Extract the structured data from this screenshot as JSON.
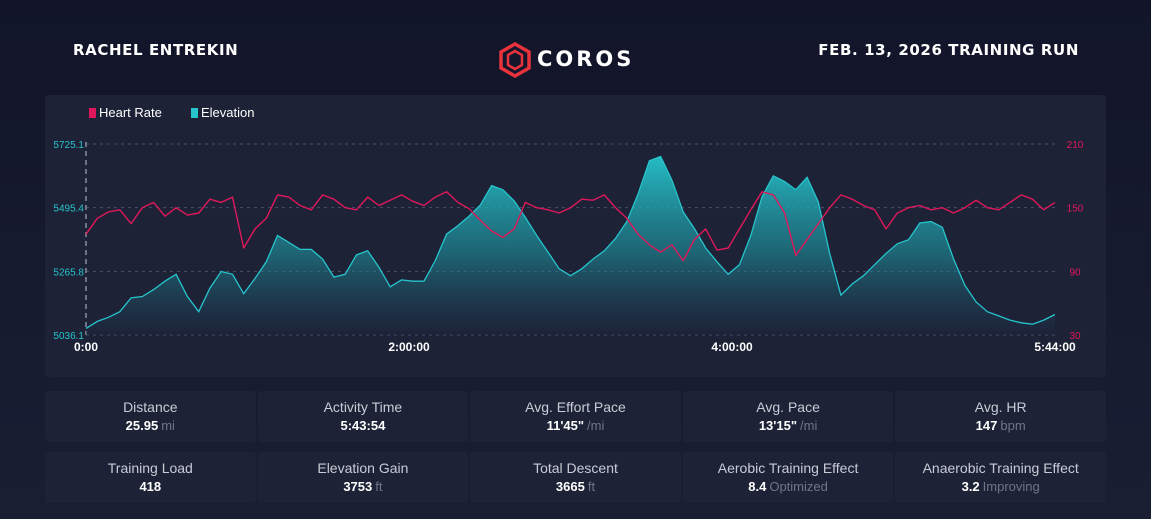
{
  "header": {
    "athlete_name": "RACHEL ENTREKIN",
    "brand": "COROS",
    "run_title": "FEB. 13, 2026 TRAINING RUN"
  },
  "colors": {
    "heart_rate": "#e0185b",
    "elevation": "#26c4cc",
    "background": "#161a2e",
    "panel": "#1d2236"
  },
  "chart_data": {
    "type": "line",
    "legend": [
      "Heart Rate",
      "Elevation"
    ],
    "legend_position": "top-left",
    "grid": true,
    "x_ticks": [
      "0:00",
      "2:00:00",
      "4:00:00",
      "5:44:00"
    ],
    "x_range_minutes": [
      0,
      344
    ],
    "y_left": {
      "label": "Elevation",
      "ticks": [
        "5725.1",
        "5495.4",
        "5265.8",
        "5036.1"
      ],
      "range": [
        5036.1,
        5725.1
      ]
    },
    "y_right": {
      "label": "Heart Rate",
      "ticks": [
        "210",
        "150",
        "90",
        "30"
      ],
      "range": [
        30,
        210
      ]
    },
    "series": [
      {
        "name": "Elevation",
        "type": "area",
        "x": [
          0,
          4,
          8,
          12,
          16,
          20,
          24,
          28,
          32,
          36,
          40,
          44,
          48,
          52,
          56,
          60,
          64,
          68,
          72,
          76,
          80,
          84,
          88,
          92,
          96,
          100,
          104,
          108,
          112,
          116,
          120,
          124,
          128,
          132,
          136,
          140,
          144,
          148,
          152,
          156,
          160,
          164,
          168,
          172,
          176,
          180,
          184,
          188,
          192,
          196,
          200,
          204,
          208,
          212,
          216,
          220,
          224,
          228,
          232,
          236,
          240,
          244,
          248,
          252,
          256,
          260,
          264,
          268,
          272,
          276,
          280,
          284,
          288,
          292,
          296,
          300,
          304,
          308,
          312,
          316,
          320,
          324,
          328,
          332,
          336,
          340,
          344
        ],
        "values": [
          5060,
          5085,
          5100,
          5120,
          5170,
          5175,
          5200,
          5230,
          5255,
          5175,
          5120,
          5205,
          5265,
          5255,
          5185,
          5240,
          5300,
          5395,
          5370,
          5345,
          5345,
          5310,
          5245,
          5255,
          5325,
          5340,
          5280,
          5210,
          5235,
          5230,
          5230,
          5305,
          5400,
          5430,
          5465,
          5505,
          5575,
          5560,
          5520,
          5460,
          5395,
          5335,
          5275,
          5250,
          5275,
          5310,
          5340,
          5385,
          5445,
          5545,
          5665,
          5680,
          5595,
          5480,
          5420,
          5350,
          5300,
          5255,
          5290,
          5395,
          5535,
          5610,
          5590,
          5560,
          5605,
          5515,
          5330,
          5180,
          5220,
          5250,
          5290,
          5330,
          5365,
          5380,
          5440,
          5445,
          5425,
          5310,
          5215,
          5155,
          5120,
          5105,
          5090,
          5080,
          5075,
          5090,
          5110
        ]
      },
      {
        "name": "Heart Rate",
        "type": "line",
        "x": [
          0,
          4,
          8,
          12,
          16,
          20,
          24,
          28,
          32,
          36,
          40,
          44,
          48,
          52,
          56,
          60,
          64,
          68,
          72,
          76,
          80,
          84,
          88,
          92,
          96,
          100,
          104,
          108,
          112,
          116,
          120,
          124,
          128,
          132,
          136,
          140,
          144,
          148,
          152,
          156,
          160,
          164,
          168,
          172,
          176,
          180,
          184,
          188,
          192,
          196,
          200,
          204,
          208,
          212,
          216,
          220,
          224,
          228,
          232,
          236,
          240,
          244,
          248,
          252,
          256,
          260,
          264,
          268,
          272,
          276,
          280,
          284,
          288,
          292,
          296,
          300,
          304,
          308,
          312,
          316,
          320,
          324,
          328,
          332,
          336,
          340,
          344
        ],
        "values": [
          125,
          140,
          146,
          148,
          135,
          150,
          155,
          142,
          150,
          143,
          145,
          158,
          155,
          160,
          112,
          130,
          140,
          162,
          160,
          152,
          148,
          162,
          158,
          150,
          148,
          160,
          152,
          157,
          162,
          156,
          152,
          160,
          165,
          155,
          149,
          138,
          128,
          122,
          130,
          155,
          150,
          148,
          145,
          150,
          158,
          157,
          162,
          150,
          140,
          125,
          115,
          108,
          115,
          100,
          120,
          130,
          110,
          112,
          130,
          148,
          165,
          162,
          145,
          105,
          120,
          135,
          150,
          162,
          158,
          152,
          148,
          130,
          145,
          150,
          152,
          148,
          150,
          145,
          150,
          157,
          150,
          148,
          155,
          162,
          158,
          148,
          155
        ]
      }
    ]
  },
  "stats": {
    "row1": [
      {
        "label": "Distance",
        "value": "25.95",
        "unit": "mi"
      },
      {
        "label": "Activity Time",
        "value": "5:43:54",
        "unit": ""
      },
      {
        "label": "Avg. Effort Pace",
        "value": "11'45\"",
        "unit": "/mi"
      },
      {
        "label": "Avg. Pace",
        "value": "13'15\"",
        "unit": "/mi"
      },
      {
        "label": "Avg. HR",
        "value": "147",
        "unit": "bpm"
      }
    ],
    "row2": [
      {
        "label": "Training Load",
        "value": "418",
        "unit": ""
      },
      {
        "label": "Elevation Gain",
        "value": "3753",
        "unit": "ft"
      },
      {
        "label": "Total Descent",
        "value": "3665",
        "unit": "ft"
      },
      {
        "label": "Aerobic Training Effect",
        "value": "8.4",
        "unit": "Optimized"
      },
      {
        "label": "Anaerobic Training Effect",
        "value": "3.2",
        "unit": "Improving"
      }
    ]
  }
}
